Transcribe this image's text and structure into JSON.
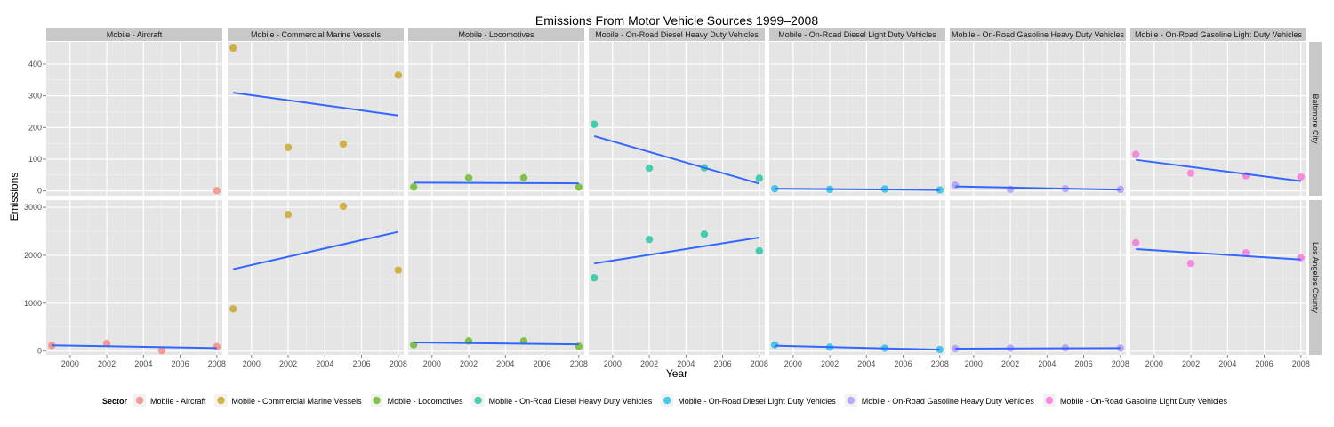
{
  "chart_data": {
    "type": "scatter",
    "title": "Emissions From Motor Vehicle Sources 1999–2008",
    "xlabel": "Year",
    "ylabel": "Emissions",
    "x_ticks": [
      2000,
      2002,
      2004,
      2006,
      2008
    ],
    "xlim": [
      1998.7,
      2008.3
    ],
    "panels_cols": [
      "Mobile - Aircraft",
      "Mobile - Commercial Marine Vessels",
      "Mobile - Locomotives",
      "Mobile - On-Road Diesel Heavy Duty Vehicles",
      "Mobile - On-Road Diesel Light Duty Vehicles",
      "Mobile - On-Road Gasoline Heavy Duty Vehicles",
      "Mobile - On-Road Gasoline Light Duty Vehicles"
    ],
    "panels_rows": [
      {
        "label": "Baltimore City",
        "ylim": [
          -15,
          470
        ],
        "y_ticks": [
          0,
          100,
          200,
          300,
          400
        ],
        "series": [
          {
            "points": [
              [
                2008,
                1
              ]
            ],
            "fit": null
          },
          {
            "points": [
              [
                1999,
                450
              ],
              [
                2002,
                137
              ],
              [
                2005,
                148
              ],
              [
                2008,
                365
              ]
            ],
            "fit": [
              [
                1999,
                310
              ],
              [
                2008,
                238
              ]
            ]
          },
          {
            "points": [
              [
                1999,
                12
              ],
              [
                2002,
                41
              ],
              [
                2005,
                41
              ],
              [
                2008,
                12
              ]
            ],
            "fit": [
              [
                1999,
                26
              ],
              [
                2008,
                24
              ]
            ]
          },
          {
            "points": [
              [
                1999,
                210
              ],
              [
                2002,
                72
              ],
              [
                2005,
                73
              ],
              [
                2008,
                40
              ]
            ],
            "fit": [
              [
                1999,
                173
              ],
              [
                2008,
                23
              ]
            ]
          },
          {
            "points": [
              [
                1999,
                7
              ],
              [
                2002,
                5
              ],
              [
                2005,
                6
              ],
              [
                2008,
                3
              ]
            ],
            "fit": [
              [
                1999,
                7
              ],
              [
                2008,
                3
              ]
            ]
          },
          {
            "points": [
              [
                1999,
                18
              ],
              [
                2002,
                5
              ],
              [
                2005,
                7
              ],
              [
                2008,
                5
              ]
            ],
            "fit": [
              [
                1999,
                14
              ],
              [
                2008,
                4
              ]
            ]
          },
          {
            "points": [
              [
                1999,
                115
              ],
              [
                2002,
                56
              ],
              [
                2005,
                48
              ],
              [
                2008,
                44
              ]
            ],
            "fit": [
              [
                1999,
                98
              ],
              [
                2008,
                31
              ]
            ]
          }
        ]
      },
      {
        "label": "Los Angeles County",
        "ylim": [
          -80,
          3150
        ],
        "y_ticks": [
          0,
          1000,
          2000,
          3000
        ],
        "series": [
          {
            "points": [
              [
                1999,
                115
              ],
              [
                2002,
                160
              ],
              [
                2005,
                10
              ],
              [
                2008,
                90
              ]
            ],
            "fit": [
              [
                1999,
                120
              ],
              [
                2008,
                62
              ]
            ]
          },
          {
            "points": [
              [
                1999,
                880
              ],
              [
                2002,
                2850
              ],
              [
                2005,
                3020
              ],
              [
                2008,
                1690
              ]
            ],
            "fit": [
              [
                1999,
                1710
              ],
              [
                2008,
                2490
              ]
            ]
          },
          {
            "points": [
              [
                1999,
                130
              ],
              [
                2002,
                210
              ],
              [
                2005,
                210
              ],
              [
                2008,
                100
              ]
            ],
            "fit": [
              [
                1999,
                180
              ],
              [
                2008,
                140
              ]
            ]
          },
          {
            "points": [
              [
                1999,
                1530
              ],
              [
                2002,
                2330
              ],
              [
                2005,
                2440
              ],
              [
                2008,
                2090
              ]
            ],
            "fit": [
              [
                1999,
                1830
              ],
              [
                2008,
                2370
              ]
            ]
          },
          {
            "points": [
              [
                1999,
                130
              ],
              [
                2002,
                80
              ],
              [
                2005,
                60
              ],
              [
                2008,
                30
              ]
            ],
            "fit": [
              [
                1999,
                112
              ],
              [
                2008,
                28
              ]
            ]
          },
          {
            "points": [
              [
                1999,
                50
              ],
              [
                2002,
                60
              ],
              [
                2005,
                65
              ],
              [
                2008,
                60
              ]
            ],
            "fit": [
              [
                1999,
                50
              ],
              [
                2008,
                62
              ]
            ]
          },
          {
            "points": [
              [
                1999,
                2260
              ],
              [
                2002,
                1830
              ],
              [
                2005,
                2050
              ],
              [
                2008,
                1950
              ]
            ],
            "fit": [
              [
                1999,
                2130
              ],
              [
                2008,
                1910
              ]
            ]
          }
        ]
      }
    ],
    "legend": {
      "title": "Sector",
      "position": "bottom",
      "entries": [
        "Mobile - Aircraft",
        "Mobile - Commercial Marine Vessels",
        "Mobile - Locomotives",
        "Mobile - On-Road Diesel Heavy Duty Vehicles",
        "Mobile - On-Road Diesel Light Duty Vehicles",
        "Mobile - On-Road Gasoline Heavy Duty Vehicles",
        "Mobile - On-Road Gasoline Light Duty Vehicles"
      ]
    },
    "colors": [
      "#F8766D",
      "#C49A00",
      "#53B400",
      "#00C094",
      "#00B6EB",
      "#A58AFF",
      "#FB61D7"
    ],
    "fit_line_color": "#3366FF",
    "panel_background": "#E5E5E5",
    "strip_background": "#C8C8C8",
    "grid": true
  }
}
